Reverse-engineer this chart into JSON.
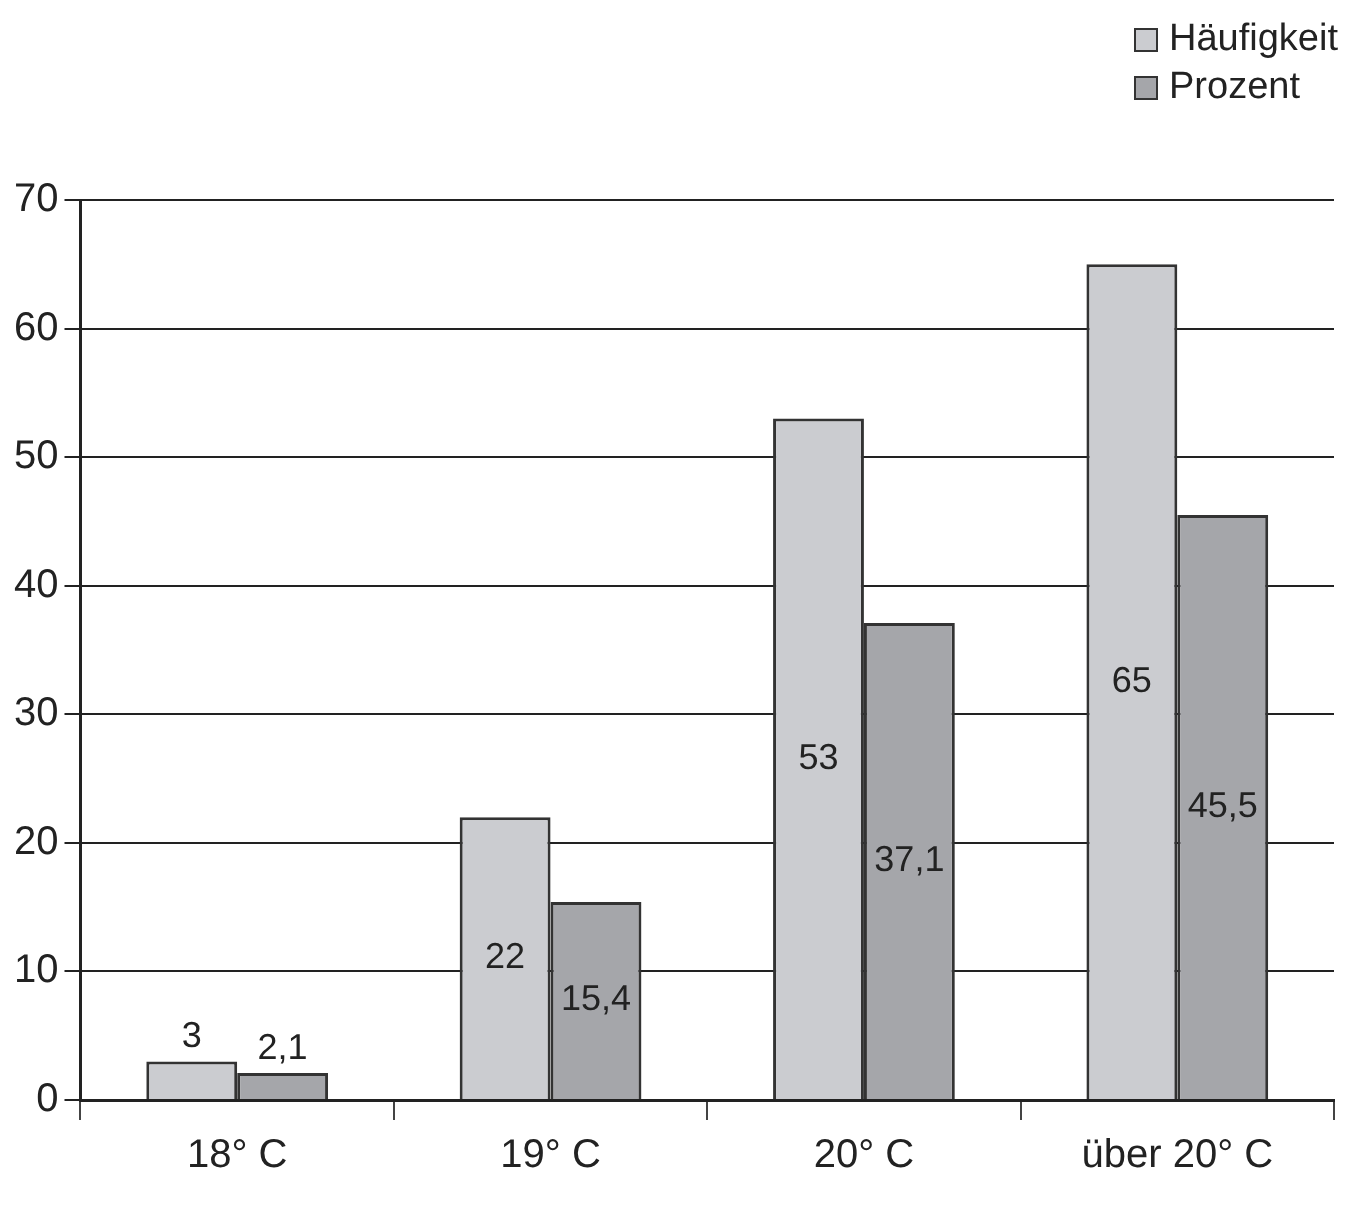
{
  "chart_data": {
    "type": "bar",
    "categories": [
      "18° C",
      "19° C",
      "20° C",
      "über 20° C"
    ],
    "series": [
      {
        "name": "Häufigkeit",
        "color": "#cbccd0",
        "values": [
          3,
          22,
          53,
          65
        ],
        "value_labels": [
          "3",
          "22",
          "53",
          "65"
        ]
      },
      {
        "name": "Prozent",
        "color": "#a5a6aa",
        "values": [
          2.1,
          15.4,
          37.1,
          45.5
        ],
        "value_labels": [
          "2,1",
          "15,4",
          "37,1",
          "45,5"
        ]
      }
    ],
    "ylim": [
      0,
      70
    ],
    "yticks": [
      0,
      10,
      20,
      30,
      40,
      50,
      60,
      70
    ],
    "grid": "y",
    "legend": "top right"
  }
}
